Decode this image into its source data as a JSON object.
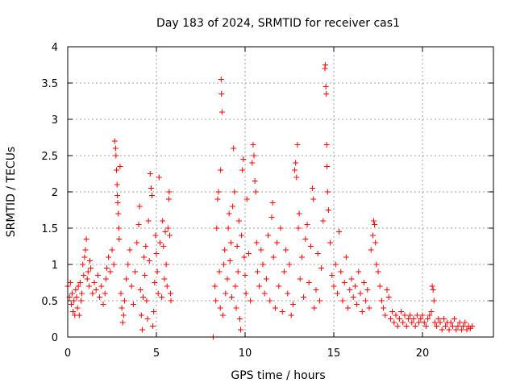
{
  "chart_data": {
    "type": "scatter",
    "title": "Day 183 of 2024, SRMTID for receiver cas1",
    "xlabel": "GPS time / hours",
    "ylabel": "SRMTID / TECUs",
    "xlim": [
      0,
      24
    ],
    "ylim": [
      0,
      4
    ],
    "xticks": [
      0,
      5,
      10,
      15,
      20
    ],
    "yticks": [
      0,
      0.5,
      1,
      1.5,
      2,
      2.5,
      3,
      3.5,
      4
    ],
    "xtick_labels": [
      "0",
      "5",
      "10",
      "15",
      "20"
    ],
    "ytick_labels": [
      "0",
      "0.5",
      "1",
      "1.5",
      "2",
      "2.5",
      "3",
      "3.5",
      "4"
    ],
    "grid": true,
    "marker": "+",
    "color": "#ff0000",
    "series": [
      {
        "name": "SRMTID",
        "points": [
          [
            0.0,
            0.7
          ],
          [
            0.1,
            0.55
          ],
          [
            0.15,
            0.75
          ],
          [
            0.2,
            0.45
          ],
          [
            0.25,
            0.6
          ],
          [
            0.3,
            0.35
          ],
          [
            0.35,
            0.5
          ],
          [
            0.4,
            0.3
          ],
          [
            0.45,
            0.65
          ],
          [
            0.5,
            0.55
          ],
          [
            0.55,
            0.4
          ],
          [
            0.6,
            0.7
          ],
          [
            0.65,
            0.3
          ],
          [
            0.7,
            0.75
          ],
          [
            0.75,
            0.5
          ],
          [
            0.8,
            0.6
          ],
          [
            0.85,
            1.0
          ],
          [
            0.9,
            0.85
          ],
          [
            0.95,
            1.1
          ],
          [
            1.0,
            1.2
          ],
          [
            1.05,
            1.35
          ],
          [
            1.1,
            0.8
          ],
          [
            1.15,
            0.9
          ],
          [
            1.2,
            0.7
          ],
          [
            1.25,
            1.05
          ],
          [
            1.3,
            0.95
          ],
          [
            1.4,
            0.6
          ],
          [
            1.5,
            0.75
          ],
          [
            1.6,
            0.65
          ],
          [
            1.7,
            0.85
          ],
          [
            1.8,
            0.55
          ],
          [
            1.9,
            0.7
          ],
          [
            2.0,
            0.45
          ],
          [
            2.1,
            0.6
          ],
          [
            2.15,
            0.8
          ],
          [
            2.2,
            0.95
          ],
          [
            2.3,
            1.1
          ],
          [
            2.4,
            0.9
          ],
          [
            2.5,
            1.2
          ],
          [
            2.6,
            1.0
          ],
          [
            2.65,
            2.7
          ],
          [
            2.7,
            2.6
          ],
          [
            2.72,
            2.5
          ],
          [
            2.75,
            2.3
          ],
          [
            2.78,
            2.1
          ],
          [
            2.8,
            1.95
          ],
          [
            2.82,
            1.85
          ],
          [
            2.85,
            1.7
          ],
          [
            2.88,
            1.5
          ],
          [
            2.9,
            1.35
          ],
          [
            2.95,
            2.35
          ],
          [
            3.0,
            0.6
          ],
          [
            3.05,
            0.4
          ],
          [
            3.1,
            0.2
          ],
          [
            3.15,
            0.3
          ],
          [
            3.2,
            0.5
          ],
          [
            3.3,
            0.8
          ],
          [
            3.4,
            1.0
          ],
          [
            3.5,
            1.2
          ],
          [
            3.6,
            0.7
          ],
          [
            3.7,
            0.45
          ],
          [
            3.8,
            0.9
          ],
          [
            3.9,
            1.3
          ],
          [
            4.0,
            1.55
          ],
          [
            4.05,
            1.8
          ],
          [
            4.1,
            0.65
          ],
          [
            4.15,
            0.3
          ],
          [
            4.2,
            0.1
          ],
          [
            4.25,
            0.55
          ],
          [
            4.3,
            1.1
          ],
          [
            4.35,
            0.85
          ],
          [
            4.4,
            1.25
          ],
          [
            4.45,
            0.5
          ],
          [
            4.5,
            0.25
          ],
          [
            4.55,
            1.6
          ],
          [
            4.6,
            1.05
          ],
          [
            4.65,
            2.25
          ],
          [
            4.7,
            2.05
          ],
          [
            4.75,
            1.95
          ],
          [
            4.8,
            0.15
          ],
          [
            4.85,
            0.35
          ],
          [
            4.9,
            0.75
          ],
          [
            4.95,
            1.4
          ],
          [
            5.0,
            1.15
          ],
          [
            5.05,
            0.9
          ],
          [
            5.1,
            0.6
          ],
          [
            5.15,
            2.2
          ],
          [
            5.2,
            1.3
          ],
          [
            5.3,
            0.55
          ],
          [
            5.35,
            1.6
          ],
          [
            5.4,
            1.25
          ],
          [
            5.45,
            0.8
          ],
          [
            5.5,
            1.45
          ],
          [
            5.55,
            1.0
          ],
          [
            5.6,
            0.7
          ],
          [
            5.65,
            1.5
          ],
          [
            5.7,
            1.9
          ],
          [
            5.72,
            2.0
          ],
          [
            5.75,
            1.4
          ],
          [
            5.8,
            0.6
          ],
          [
            5.82,
            0.5
          ],
          [
            8.2,
            0.0
          ],
          [
            8.3,
            0.7
          ],
          [
            8.35,
            0.5
          ],
          [
            8.4,
            1.5
          ],
          [
            8.45,
            1.9
          ],
          [
            8.5,
            2.0
          ],
          [
            8.55,
            0.9
          ],
          [
            8.6,
            0.4
          ],
          [
            8.62,
            2.3
          ],
          [
            8.65,
            3.55
          ],
          [
            8.67,
            3.35
          ],
          [
            8.7,
            3.1
          ],
          [
            8.75,
            0.3
          ],
          [
            8.8,
            1.0
          ],
          [
            8.85,
            1.2
          ],
          [
            8.9,
            0.6
          ],
          [
            9.0,
            0.8
          ],
          [
            9.05,
            1.5
          ],
          [
            9.1,
            1.7
          ],
          [
            9.15,
            1.05
          ],
          [
            9.2,
            1.3
          ],
          [
            9.25,
            0.55
          ],
          [
            9.3,
            1.8
          ],
          [
            9.35,
            2.6
          ],
          [
            9.4,
            2.0
          ],
          [
            9.45,
            0.7
          ],
          [
            9.5,
            0.4
          ],
          [
            9.55,
            1.25
          ],
          [
            9.6,
            0.9
          ],
          [
            9.65,
            1.6
          ],
          [
            9.7,
            0.25
          ],
          [
            9.75,
            0.1
          ],
          [
            9.8,
            1.4
          ],
          [
            9.85,
            2.3
          ],
          [
            9.9,
            2.45
          ],
          [
            9.95,
            1.1
          ],
          [
            10.0,
            0.85
          ],
          [
            10.05,
            0.6
          ],
          [
            10.1,
            1.9
          ],
          [
            10.2,
            1.15
          ],
          [
            10.3,
            0.5
          ],
          [
            10.4,
            2.4
          ],
          [
            10.45,
            2.65
          ],
          [
            10.5,
            2.5
          ],
          [
            10.55,
            2.15
          ],
          [
            10.6,
            2.0
          ],
          [
            10.65,
            1.3
          ],
          [
            10.7,
            0.9
          ],
          [
            10.8,
            0.7
          ],
          [
            10.9,
            1.2
          ],
          [
            11.0,
            1.0
          ],
          [
            11.1,
            0.6
          ],
          [
            11.2,
            0.8
          ],
          [
            11.3,
            1.4
          ],
          [
            11.4,
            0.5
          ],
          [
            11.5,
            1.65
          ],
          [
            11.55,
            1.85
          ],
          [
            11.6,
            1.1
          ],
          [
            11.7,
            0.4
          ],
          [
            11.8,
            1.3
          ],
          [
            11.9,
            0.7
          ],
          [
            12.0,
            1.5
          ],
          [
            12.1,
            0.35
          ],
          [
            12.2,
            0.9
          ],
          [
            12.3,
            1.2
          ],
          [
            12.4,
            0.6
          ],
          [
            12.5,
            1.0
          ],
          [
            12.6,
            0.3
          ],
          [
            12.7,
            0.45
          ],
          [
            12.8,
            2.3
          ],
          [
            12.85,
            2.4
          ],
          [
            12.9,
            2.2
          ],
          [
            12.95,
            2.65
          ],
          [
            13.0,
            1.5
          ],
          [
            13.05,
            1.7
          ],
          [
            13.1,
            0.8
          ],
          [
            13.2,
            1.1
          ],
          [
            13.3,
            0.55
          ],
          [
            13.4,
            1.35
          ],
          [
            13.5,
            1.55
          ],
          [
            13.6,
            0.75
          ],
          [
            13.7,
            1.25
          ],
          [
            13.8,
            2.05
          ],
          [
            13.85,
            1.9
          ],
          [
            13.9,
            0.4
          ],
          [
            14.0,
            0.65
          ],
          [
            14.1,
            1.15
          ],
          [
            14.2,
            0.5
          ],
          [
            14.3,
            0.95
          ],
          [
            14.4,
            1.6
          ],
          [
            14.5,
            3.7
          ],
          [
            14.52,
            3.75
          ],
          [
            14.55,
            3.45
          ],
          [
            14.58,
            3.35
          ],
          [
            14.6,
            2.65
          ],
          [
            14.62,
            2.35
          ],
          [
            14.65,
            2.0
          ],
          [
            14.7,
            1.75
          ],
          [
            14.8,
            1.3
          ],
          [
            14.9,
            0.85
          ],
          [
            15.0,
            0.7
          ],
          [
            15.1,
            1.0
          ],
          [
            15.2,
            0.6
          ],
          [
            15.3,
            1.45
          ],
          [
            15.4,
            0.9
          ],
          [
            15.5,
            0.5
          ],
          [
            15.6,
            0.75
          ],
          [
            15.7,
            1.1
          ],
          [
            15.8,
            0.4
          ],
          [
            15.9,
            0.65
          ],
          [
            16.0,
            0.8
          ],
          [
            16.1,
            0.55
          ],
          [
            16.2,
            0.7
          ],
          [
            16.3,
            0.45
          ],
          [
            16.4,
            0.9
          ],
          [
            16.5,
            0.6
          ],
          [
            16.6,
            0.35
          ],
          [
            16.7,
            0.75
          ],
          [
            16.8,
            0.5
          ],
          [
            16.9,
            0.65
          ],
          [
            17.0,
            0.4
          ],
          [
            17.1,
            1.2
          ],
          [
            17.2,
            1.4
          ],
          [
            17.25,
            1.6
          ],
          [
            17.3,
            1.55
          ],
          [
            17.35,
            1.3
          ],
          [
            17.4,
            1.0
          ],
          [
            17.5,
            0.9
          ],
          [
            17.6,
            0.7
          ],
          [
            17.7,
            0.5
          ],
          [
            17.8,
            0.4
          ],
          [
            17.9,
            0.3
          ],
          [
            18.0,
            0.65
          ],
          [
            18.1,
            0.55
          ],
          [
            18.2,
            0.25
          ],
          [
            18.3,
            0.35
          ],
          [
            18.4,
            0.2
          ],
          [
            18.5,
            0.3
          ],
          [
            18.6,
            0.15
          ],
          [
            18.7,
            0.25
          ],
          [
            18.8,
            0.35
          ],
          [
            18.9,
            0.2
          ],
          [
            19.0,
            0.3
          ],
          [
            19.1,
            0.15
          ],
          [
            19.2,
            0.25
          ],
          [
            19.3,
            0.3
          ],
          [
            19.4,
            0.2
          ],
          [
            19.5,
            0.25
          ],
          [
            19.6,
            0.15
          ],
          [
            19.7,
            0.3
          ],
          [
            19.8,
            0.2
          ],
          [
            19.9,
            0.25
          ],
          [
            20.0,
            0.3
          ],
          [
            20.1,
            0.2
          ],
          [
            20.2,
            0.15
          ],
          [
            20.3,
            0.25
          ],
          [
            20.4,
            0.3
          ],
          [
            20.5,
            0.35
          ],
          [
            20.55,
            0.7
          ],
          [
            20.6,
            0.65
          ],
          [
            20.65,
            0.5
          ],
          [
            20.7,
            0.2
          ],
          [
            20.8,
            0.15
          ],
          [
            20.9,
            0.25
          ],
          [
            21.0,
            0.2
          ],
          [
            21.1,
            0.1
          ],
          [
            21.2,
            0.25
          ],
          [
            21.3,
            0.15
          ],
          [
            21.4,
            0.2
          ],
          [
            21.5,
            0.1
          ],
          [
            21.6,
            0.2
          ],
          [
            21.7,
            0.15
          ],
          [
            21.8,
            0.25
          ],
          [
            21.9,
            0.1
          ],
          [
            22.0,
            0.15
          ],
          [
            22.1,
            0.2
          ],
          [
            22.2,
            0.1
          ],
          [
            22.3,
            0.15
          ],
          [
            22.4,
            0.2
          ],
          [
            22.5,
            0.1
          ],
          [
            22.6,
            0.15
          ],
          [
            22.7,
            0.12
          ],
          [
            22.8,
            0.15
          ]
        ]
      }
    ]
  }
}
